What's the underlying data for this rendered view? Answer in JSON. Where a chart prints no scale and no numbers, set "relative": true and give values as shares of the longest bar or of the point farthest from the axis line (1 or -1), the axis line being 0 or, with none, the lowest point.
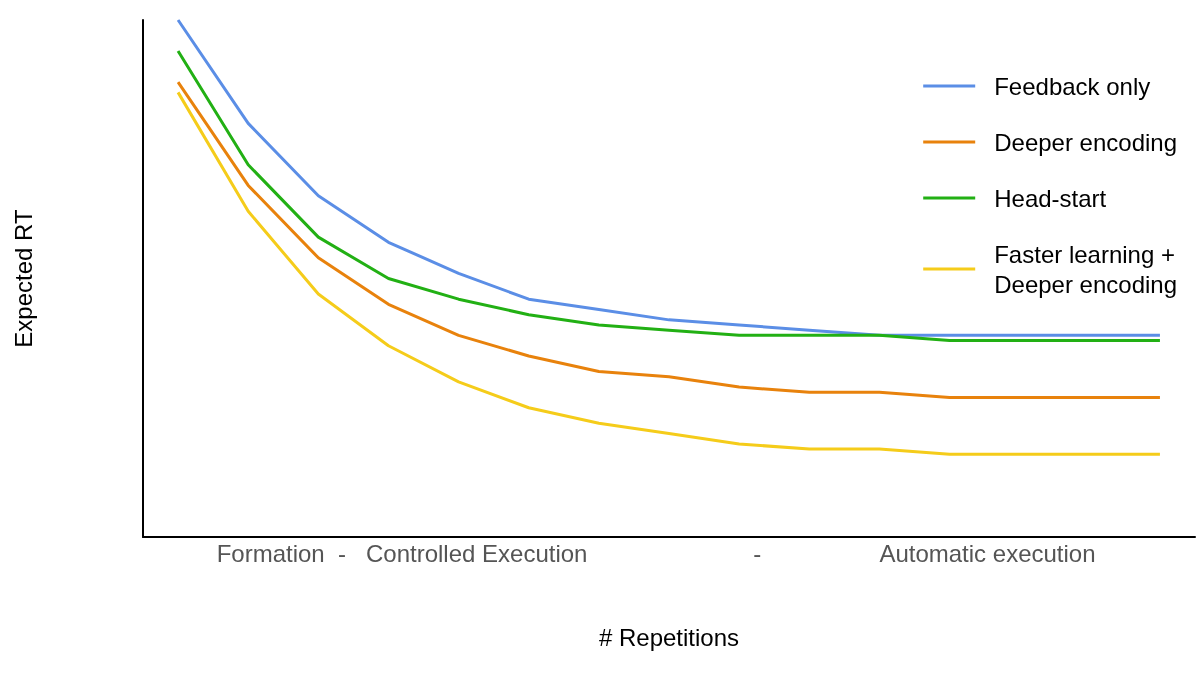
{
  "chart_data": {
    "type": "line",
    "relative": true,
    "xlabel": "# Repetitions",
    "ylabel": "Expected RT",
    "annotations": [
      "Formation  -   Controlled Execution",
      "-",
      "Automatic execution"
    ],
    "categories": [
      null,
      null,
      null,
      null,
      null,
      null,
      null,
      null,
      null,
      null,
      null,
      null,
      null,
      null,
      null
    ],
    "series": [
      {
        "name": "Feedback only",
        "color": "#5b8ee6",
        "values": [
          1,
          0.8,
          0.66,
          0.57,
          0.51,
          0.46,
          0.44,
          0.42,
          0.41,
          0.4,
          0.39,
          0.39,
          0.39,
          0.39,
          0.39
        ]
      },
      {
        "name": "Deeper encoding",
        "color": "#e8820c",
        "values": [
          0.88,
          0.68,
          0.54,
          0.45,
          0.39,
          0.35,
          0.32,
          0.31,
          0.29,
          0.28,
          0.28,
          0.27,
          0.27,
          0.27,
          0.27
        ]
      },
      {
        "name": "Head-start",
        "color": "#22b014",
        "values": [
          0.94,
          0.72,
          0.58,
          0.5,
          0.46,
          0.43,
          0.41,
          0.4,
          0.39,
          0.39,
          0.39,
          0.38,
          0.38,
          0.38,
          0.38
        ]
      },
      {
        "name": "Faster learning +\nDeeper encoding",
        "color": "#f5cc1a",
        "values": [
          0.86,
          0.63,
          0.47,
          0.37,
          0.3,
          0.25,
          0.22,
          0.2,
          0.18,
          0.17,
          0.17,
          0.16,
          0.16,
          0.16,
          0.16
        ]
      }
    ],
    "legend": "top right",
    "grid": false,
    "marker": "none",
    "line_style": "solid"
  }
}
